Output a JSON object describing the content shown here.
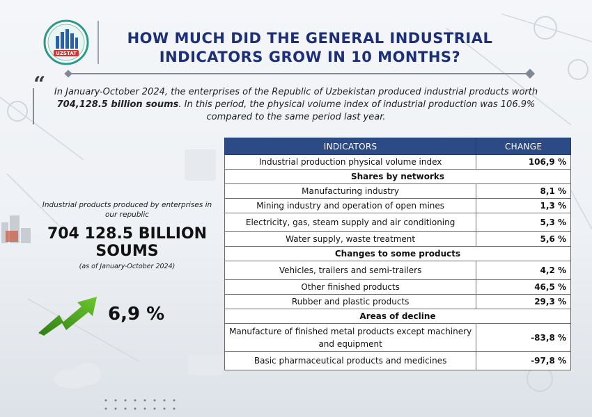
{
  "logo": {
    "text": "UZSTAT"
  },
  "title": "HOW MUCH DID THE GENERAL INDUSTRIAL INDICATORS GROW IN 10 MONTHS?",
  "intro": {
    "part1": "In January-October 2024, the enterprises of the Republic of Uzbekistan produced industrial products worth ",
    "bold": "704,128.5 billion soums",
    "part2": ". In this period, the physical volume index of industrial production was 106.9% compared to the same period last year."
  },
  "summary": {
    "caption": "Industrial products produced by enterprises in our republic",
    "value": "704 128.5 BILLION SOUMS",
    "period": "(as of January-October 2024)",
    "growth": "6,9 %"
  },
  "table": {
    "headers": [
      "INDICATORS",
      "CHANGE"
    ],
    "top_row": {
      "label": "Industrial production physical volume index",
      "value": "106,9 %"
    },
    "sections": [
      {
        "title": "Shares by networks",
        "rows": [
          {
            "label": "Manufacturing industry",
            "value": "8,1 %"
          },
          {
            "label": "Mining industry and operation of open mines",
            "value": "1,3 %"
          },
          {
            "label": "Electricity, gas, steam supply and air conditioning",
            "value": "5,3 %"
          },
          {
            "label": "Water supply, waste treatment",
            "value": "5,6 %"
          }
        ]
      },
      {
        "title": "Changes to some products",
        "rows": [
          {
            "label": "Vehicles, trailers and semi-trailers",
            "value": "4,2 %"
          },
          {
            "label": "Other finished products",
            "value": "46,5 %"
          },
          {
            "label": "Rubber and plastic products",
            "value": "29,3 %"
          }
        ]
      },
      {
        "title": "Areas of decline",
        "rows": [
          {
            "label": "Manufacture of finished metal products except machinery and equipment",
            "value": "-83,8 %"
          },
          {
            "label": "Basic pharmaceutical products and medicines",
            "value": "-97,8 %"
          }
        ]
      }
    ]
  },
  "colors": {
    "title": "#1c2f78",
    "header_bg": "#2b4a86",
    "arrow": "#3d9a1f"
  }
}
